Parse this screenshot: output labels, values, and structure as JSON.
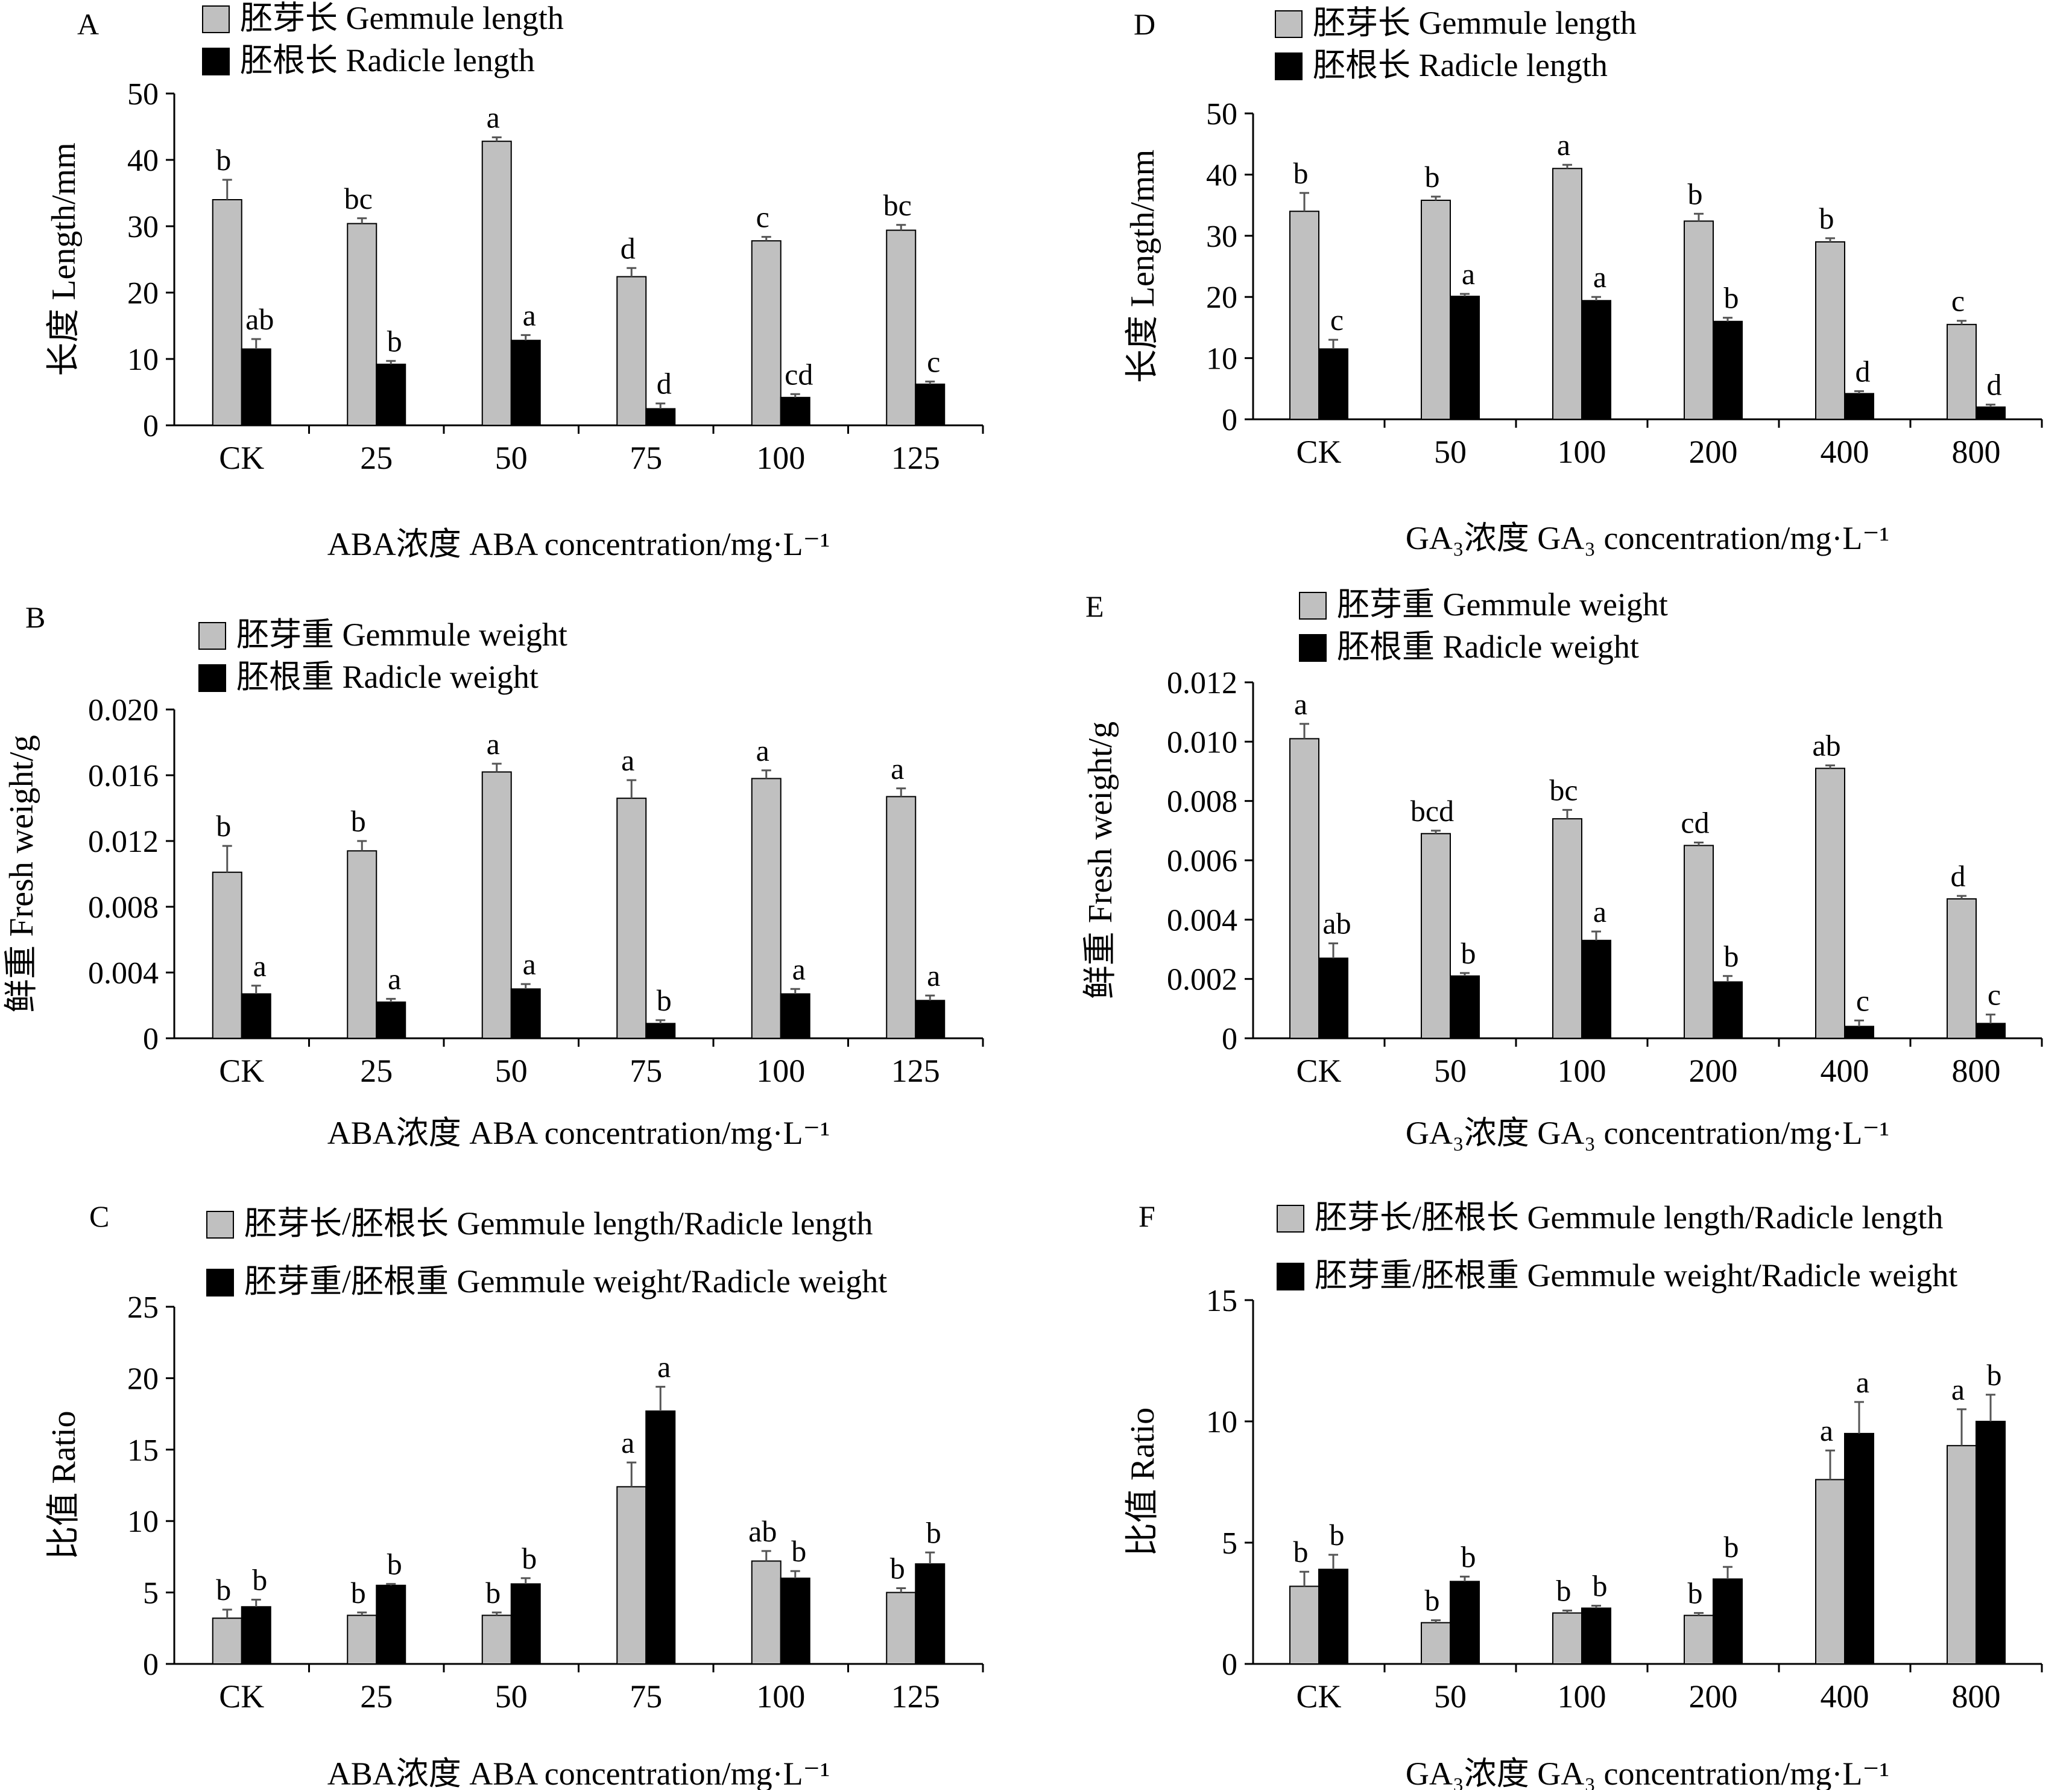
{
  "chart_data": [
    {
      "panel": "A",
      "type": "bar",
      "categories": [
        "CK",
        "25",
        "50",
        "75",
        "100",
        "125"
      ],
      "xlabel": "ABA浓度 ABA concentration/mg·L⁻¹",
      "ylabel": "长度 Length/mm",
      "ylim": [
        0,
        50
      ],
      "yticks": [
        "0",
        "10",
        "20",
        "30",
        "40",
        "50"
      ],
      "legend_position": "top-left",
      "series": [
        {
          "name": "胚芽长 Gemmule length",
          "color": "#c0c0c0",
          "values": [
            34.0,
            30.4,
            42.8,
            22.4,
            27.8,
            29.4
          ],
          "errors": [
            3.0,
            0.8,
            0.6,
            1.3,
            0.6,
            0.8
          ],
          "letters": [
            "b",
            "bc",
            "a",
            "d",
            "c",
            "bc"
          ]
        },
        {
          "name": "胚根长 Radicle length",
          "color": "#000000",
          "values": [
            11.5,
            9.2,
            12.8,
            2.5,
            4.2,
            6.2
          ],
          "errors": [
            1.5,
            0.5,
            0.8,
            0.8,
            0.5,
            0.4
          ],
          "letters": [
            "ab",
            "b",
            "a",
            "d",
            "cd",
            "c"
          ]
        }
      ]
    },
    {
      "panel": "D",
      "type": "bar",
      "categories": [
        "CK",
        "50",
        "100",
        "200",
        "400",
        "800"
      ],
      "xlabel": "GA₃浓度 GA₃ concentration/mg·L⁻¹",
      "ylabel": "长度 Length/mm",
      "ylim": [
        0,
        50
      ],
      "yticks": [
        "0",
        "10",
        "20",
        "30",
        "40",
        "50"
      ],
      "legend_position": "top-left",
      "series": [
        {
          "name": "胚芽长 Gemmule length",
          "color": "#c0c0c0",
          "values": [
            34.0,
            35.8,
            41.0,
            32.4,
            29.0,
            15.5
          ],
          "errors": [
            3.0,
            0.6,
            0.6,
            1.2,
            0.6,
            0.6
          ],
          "letters": [
            "b",
            "b",
            "a",
            "b",
            "b",
            "c"
          ]
        },
        {
          "name": "胚根长 Radicle length",
          "color": "#000000",
          "values": [
            11.5,
            20.1,
            19.4,
            16.0,
            4.2,
            2.0
          ],
          "errors": [
            1.5,
            0.4,
            0.6,
            0.6,
            0.4,
            0.4
          ],
          "letters": [
            "c",
            "a",
            "a",
            "b",
            "d",
            "d"
          ]
        }
      ]
    },
    {
      "panel": "B",
      "type": "bar",
      "categories": [
        "CK",
        "25",
        "50",
        "75",
        "100",
        "125"
      ],
      "xlabel": "ABA浓度 ABA concentration/mg·L⁻¹",
      "ylabel": "鲜重 Fresh weight/g",
      "ylim": [
        0,
        0.02
      ],
      "yticks": [
        "0",
        "0.004",
        "0.008",
        "0.012",
        "0.016",
        "0.020"
      ],
      "legend_position": "top-left",
      "series": [
        {
          "name": "胚芽重 Gemmule weight",
          "color": "#c0c0c0",
          "values": [
            0.0101,
            0.0114,
            0.0162,
            0.0146,
            0.0158,
            0.0147
          ],
          "errors": [
            0.0016,
            0.0006,
            0.0005,
            0.0011,
            0.0005,
            0.0005
          ],
          "letters": [
            "b",
            "b",
            "a",
            "a",
            "a",
            "a"
          ]
        },
        {
          "name": "胚根重 Radicle weight",
          "color": "#000000",
          "values": [
            0.0027,
            0.0022,
            0.003,
            0.0009,
            0.0027,
            0.0023
          ],
          "errors": [
            0.0005,
            0.0002,
            0.0003,
            0.0002,
            0.0003,
            0.0003
          ],
          "letters": [
            "a",
            "a",
            "a",
            "b",
            "a",
            "a"
          ]
        }
      ]
    },
    {
      "panel": "E",
      "type": "bar",
      "categories": [
        "CK",
        "50",
        "100",
        "200",
        "400",
        "800"
      ],
      "xlabel": "GA₃浓度 GA₃ concentration/mg·L⁻¹",
      "ylabel": "鲜重 Fresh weight/g",
      "ylim": [
        0,
        0.012
      ],
      "yticks": [
        "0",
        "0.002",
        "0.004",
        "0.006",
        "0.008",
        "0.010",
        "0.012"
      ],
      "legend_position": "top-left",
      "series": [
        {
          "name": "胚芽重 Gemmule weight",
          "color": "#c0c0c0",
          "values": [
            0.0101,
            0.0069,
            0.0074,
            0.0065,
            0.0091,
            0.0047
          ],
          "errors": [
            0.0005,
            0.0001,
            0.0003,
            0.0001,
            0.0001,
            0.0001
          ],
          "letters": [
            "a",
            "bcd",
            "bc",
            "cd",
            "ab",
            "d"
          ]
        },
        {
          "name": "胚根重 Radicle weight",
          "color": "#000000",
          "values": [
            0.0027,
            0.0021,
            0.0033,
            0.0019,
            0.0004,
            0.0005
          ],
          "errors": [
            0.0005,
            0.0001,
            0.0003,
            0.0002,
            0.0002,
            0.0003
          ],
          "letters": [
            "ab",
            "b",
            "a",
            "b",
            "c",
            "c"
          ]
        }
      ]
    },
    {
      "panel": "C",
      "type": "bar",
      "categories": [
        "CK",
        "25",
        "50",
        "75",
        "100",
        "125"
      ],
      "xlabel": "ABA浓度 ABA concentration/mg·L⁻¹",
      "ylabel": "比值 Ratio",
      "ylim": [
        0,
        25
      ],
      "yticks": [
        "0",
        "5",
        "10",
        "15",
        "20",
        "25"
      ],
      "legend_position": "top-left",
      "series": [
        {
          "name": "胚芽长/胚根长 Gemmule length/Radicle length",
          "color": "#c0c0c0",
          "values": [
            3.2,
            3.4,
            3.4,
            12.4,
            7.2,
            5.0
          ],
          "errors": [
            0.6,
            0.2,
            0.2,
            1.7,
            0.7,
            0.3
          ],
          "letters": [
            "b",
            "b",
            "b",
            "a",
            "ab",
            "b"
          ]
        },
        {
          "name": "胚芽重/胚根重 Gemmule weight/Radicle weight",
          "color": "#000000",
          "values": [
            4.0,
            5.5,
            5.6,
            17.7,
            6.0,
            7.0
          ],
          "errors": [
            0.5,
            0.1,
            0.4,
            1.7,
            0.5,
            0.8
          ],
          "letters": [
            "b",
            "b",
            "b",
            "a",
            "b",
            "b"
          ]
        }
      ]
    },
    {
      "panel": "F",
      "type": "bar",
      "categories": [
        "CK",
        "50",
        "100",
        "200",
        "400",
        "800"
      ],
      "xlabel": "GA₃浓度 GA₃ concentration/mg·L⁻¹",
      "ylabel": "比值 Ratio",
      "ylim": [
        0,
        15
      ],
      "yticks": [
        "0",
        "5",
        "10",
        "15"
      ],
      "legend_position": "top-left",
      "series": [
        {
          "name": "胚芽长/胚根长 Gemmule length/Radicle length",
          "color": "#c0c0c0",
          "values": [
            3.2,
            1.7,
            2.1,
            2.0,
            7.6,
            9.0
          ],
          "errors": [
            0.6,
            0.1,
            0.1,
            0.1,
            1.2,
            1.5
          ],
          "letters": [
            "b",
            "b",
            "b",
            "b",
            "a",
            "a"
          ]
        },
        {
          "name": "胚芽重/胚根重 Gemmule weight/Radicle weight",
          "color": "#000000",
          "values": [
            3.9,
            3.4,
            2.3,
            3.5,
            9.5,
            10.0
          ],
          "errors": [
            0.6,
            0.2,
            0.1,
            0.5,
            1.3,
            1.1
          ],
          "letters": [
            "b",
            "b",
            "b",
            "b",
            "a",
            "b"
          ]
        }
      ]
    }
  ]
}
